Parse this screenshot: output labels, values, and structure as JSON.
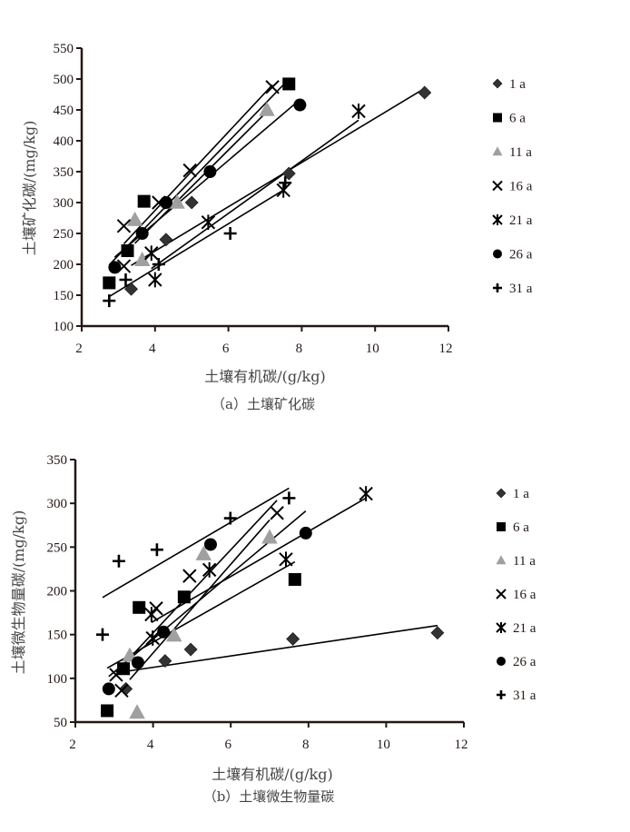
{
  "chart_data": [
    {
      "type": "scatter",
      "title": "",
      "caption": "（a）土壤矿化碳",
      "xlabel": "土壤有机碳/(g/kg)",
      "ylabel": "土壤矿化碳/(mg/kg)",
      "xlim": [
        2,
        12
      ],
      "ylim": [
        100,
        550
      ],
      "xticks": [
        "2",
        "4",
        "6",
        "8",
        "10",
        "12"
      ],
      "yticks": [
        "100",
        "150",
        "200",
        "250",
        "300",
        "350",
        "400",
        "450",
        "500",
        "550"
      ],
      "grid": false,
      "legend_position": "right",
      "trendlines": "linear per series",
      "series": [
        {
          "name": "1 a",
          "marker": "diamond",
          "color": "#333333",
          "x": [
            3.35,
            4.3,
            5.0,
            7.65,
            11.35
          ],
          "y": [
            160,
            240,
            300,
            347,
            478
          ]
        },
        {
          "name": "6 a",
          "marker": "square",
          "color": "#000000",
          "x": [
            2.75,
            3.25,
            3.7,
            7.65
          ],
          "y": [
            170,
            222,
            302,
            492
          ]
        },
        {
          "name": "11 a",
          "marker": "triangle",
          "color": "#a0a0a0",
          "x": [
            3.45,
            3.65,
            4.6,
            7.05
          ],
          "y": [
            272,
            207,
            300,
            450
          ]
        },
        {
          "name": "16 a",
          "marker": "x",
          "color": "#000000",
          "x": [
            3.15,
            3.15,
            4.1,
            4.95,
            7.2
          ],
          "y": [
            262,
            197,
            300,
            352,
            487
          ]
        },
        {
          "name": "21 a",
          "marker": "asterisk",
          "color": "#000000",
          "x": [
            3.9,
            4.0,
            5.45,
            7.5,
            9.55
          ],
          "y": [
            218,
            175,
            268,
            320,
            448
          ]
        },
        {
          "name": "26 a",
          "marker": "circle",
          "color": "#000000",
          "x": [
            2.9,
            3.65,
            4.3,
            5.5,
            7.95
          ],
          "y": [
            195,
            250,
            300,
            350,
            458
          ]
        },
        {
          "name": "31 a",
          "marker": "plus",
          "color": "#000000",
          "x": [
            2.75,
            3.2,
            4.1,
            6.05,
            7.55
          ],
          "y": [
            141,
            175,
            200,
            250,
            332
          ]
        }
      ]
    },
    {
      "type": "scatter",
      "title": "",
      "caption": "（b）土壤微生物量碳",
      "xlabel": "土壤有机碳/(g/kg)",
      "ylabel": "土壤微生物量碳/(mg/kg)",
      "xlim": [
        2,
        12
      ],
      "ylim": [
        50,
        350
      ],
      "xticks": [
        "2",
        "4",
        "6",
        "8",
        "10",
        "12"
      ],
      "yticks": [
        "50",
        "100",
        "150",
        "200",
        "250",
        "300",
        "350"
      ],
      "grid": false,
      "legend_position": "right",
      "trendlines": "linear per series",
      "series": [
        {
          "name": "1 a",
          "marker": "diamond",
          "color": "#333333",
          "x": [
            3.3,
            4.31,
            4.97,
            7.6,
            11.32
          ],
          "y": [
            88,
            120,
            133,
            145,
            152
          ]
        },
        {
          "name": "6 a",
          "marker": "square",
          "color": "#000000",
          "x": [
            2.82,
            3.24,
            3.64,
            4.8,
            7.65
          ],
          "y": [
            63,
            111,
            181,
            193,
            213
          ]
        },
        {
          "name": "11 a",
          "marker": "triangle",
          "color": "#a0a0a0",
          "x": [
            3.59,
            3.4,
            4.54,
            5.3,
            7.0
          ],
          "y": [
            61,
            126,
            149,
            242,
            261
          ]
        },
        {
          "name": "16 a",
          "marker": "x",
          "color": "#000000",
          "x": [
            3.19,
            3.05,
            4.08,
            4.94,
            7.19
          ],
          "y": [
            86,
            104,
            180,
            217,
            289
          ]
        },
        {
          "name": "21 a",
          "marker": "asterisk",
          "color": "#000000",
          "x": [
            3.99,
            3.96,
            5.45,
            7.42,
            9.48
          ],
          "y": [
            146,
            173,
            224,
            236,
            311
          ]
        },
        {
          "name": "26 a",
          "marker": "circle",
          "color": "#000000",
          "x": [
            2.86,
            3.61,
            4.27,
            5.48,
            7.93
          ],
          "y": [
            88,
            118,
            153,
            253,
            266
          ]
        },
        {
          "name": "31 a",
          "marker": "plus",
          "color": "#000000",
          "x": [
            2.7,
            3.12,
            4.1,
            5.99,
            7.5
          ],
          "y": [
            150,
            234,
            247,
            283,
            306
          ]
        }
      ]
    }
  ]
}
